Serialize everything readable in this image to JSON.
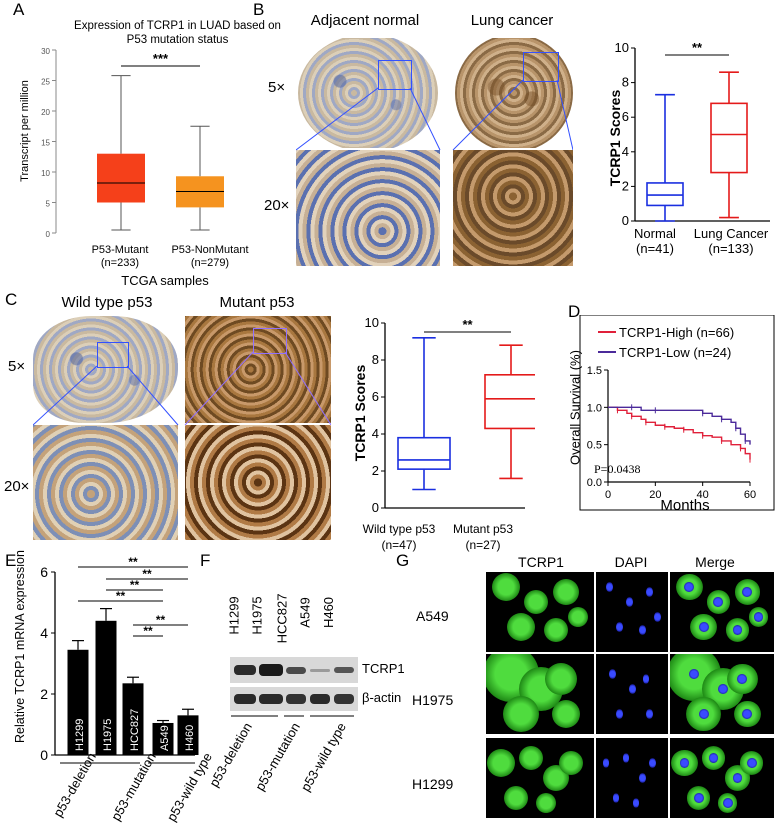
{
  "panels": {
    "A": {
      "label": "A",
      "title_line1": "Expression of TCRP1 in LUAD based on",
      "title_line2": "P53 mutation status",
      "ylabel": "Transcript per million",
      "xlabel": "TCGA samples",
      "groups": [
        {
          "name": "P53-Mutant",
          "n": "(n=233)",
          "color": "#f5401a"
        },
        {
          "name": "P53-NonMutant",
          "n": "(n=279)",
          "color": "#f5931f"
        }
      ],
      "sig": "***"
    },
    "B": {
      "label": "B",
      "col1": "Adjacent normal",
      "col2": "Lung cancer",
      "row1": "5×",
      "row2": "20×",
      "ylabel": "TCRP1 Scores",
      "groups": [
        {
          "name": "Normal",
          "n": "(n=41)",
          "color": "#1a2fe0"
        },
        {
          "name": "Lung Cancer",
          "n": "(n=133)",
          "color": "#e41a1a"
        }
      ],
      "sig": "**"
    },
    "C": {
      "label": "C",
      "col1": "Wild type p53",
      "col2": "Mutant p53",
      "row1": "5×",
      "row2": "20×",
      "ylabel": "TCRP1 Scores",
      "groups": [
        {
          "name": "Wild type p53",
          "n": "(n=47)",
          "color": "#1a2fe0"
        },
        {
          "name": "Mutant p53",
          "n": "(n=27)",
          "color": "#e41a1a"
        }
      ],
      "sig": "**"
    },
    "D": {
      "label": "D",
      "ylabel": "Overall Survival (%)",
      "xlabel": "Months",
      "legend_high": "TCRP1-High (n=66)",
      "legend_low": "TCRP1-Low (n=24)",
      "pvalue": "P=0.0438"
    },
    "E": {
      "label": "E",
      "ylabel": "Relative TCRP1 mRNA expression",
      "groups": [
        "p53-deletion",
        "p53-mutation",
        "p53-wild type"
      ],
      "sig": "**"
    },
    "F": {
      "label": "F",
      "lanes": [
        "H1299",
        "H1975",
        "HCC827",
        "A549",
        "H460"
      ],
      "bands": [
        "TCRP1",
        "β-actin"
      ],
      "groups": [
        "p53-deletion",
        "p53-mutation",
        "p53-wild type"
      ]
    },
    "G": {
      "label": "G",
      "cols": [
        "TCRP1",
        "DAPI",
        "Merge"
      ],
      "rows": [
        "A549",
        "H1975",
        "H1299"
      ]
    }
  },
  "chart_data": [
    {
      "type": "box",
      "panel": "A",
      "title": "Expression of TCRP1 in LUAD based on P53 mutation status",
      "ylabel": "Transcript per million",
      "xlabel": "TCGA samples",
      "ylim": [
        0,
        30
      ],
      "yticks": [
        0,
        5,
        10,
        15,
        20,
        25,
        30
      ],
      "categories": [
        "P53-Mutant",
        "P53-NonMutant"
      ],
      "boxes": [
        {
          "min": 0.5,
          "q1": 5,
          "median": 8.2,
          "q3": 13,
          "max": 25.8
        },
        {
          "min": 0.5,
          "q1": 4.2,
          "median": 6.8,
          "q3": 9.3,
          "max": 17.5
        }
      ]
    },
    {
      "type": "box",
      "panel": "B",
      "ylabel": "TCRP1 Scores",
      "ylim": [
        0,
        10
      ],
      "yticks": [
        0,
        2,
        4,
        6,
        8,
        10
      ],
      "categories": [
        "Normal",
        "Lung Cancer"
      ],
      "boxes": [
        {
          "min": 0,
          "q1": 0.9,
          "median": 1.5,
          "q3": 2.2,
          "max": 7.3
        },
        {
          "min": 0.2,
          "q1": 2.8,
          "median": 5.0,
          "q3": 6.8,
          "max": 8.6
        }
      ]
    },
    {
      "type": "box",
      "panel": "C",
      "ylabel": "TCRP1 Scores",
      "ylim": [
        0,
        10
      ],
      "yticks": [
        0,
        2,
        4,
        6,
        8,
        10
      ],
      "categories": [
        "Wild type p53",
        "Mutant p53"
      ],
      "boxes": [
        {
          "min": 1.0,
          "q1": 2.1,
          "median": 2.6,
          "q3": 3.8,
          "max": 9.2
        },
        {
          "min": 1.6,
          "q1": 4.3,
          "median": 5.9,
          "q3": 7.2,
          "max": 8.8
        }
      ]
    },
    {
      "type": "line",
      "panel": "D",
      "ylabel": "Overall Survival (%)",
      "xlabel": "Months",
      "xlim": [
        0,
        60
      ],
      "ylim": [
        0,
        1.5
      ],
      "xticks": [
        0,
        20,
        40,
        60
      ],
      "yticks": [
        0.0,
        0.5,
        1.0,
        1.5
      ],
      "series": [
        {
          "name": "TCRP1-High (n=66)",
          "color": "#e0203a",
          "x": [
            0,
            4,
            8,
            10,
            14,
            16,
            20,
            24,
            28,
            32,
            36,
            40,
            44,
            48,
            52,
            56,
            58,
            60
          ],
          "y": [
            1.0,
            0.96,
            0.92,
            0.88,
            0.84,
            0.8,
            0.76,
            0.74,
            0.72,
            0.7,
            0.66,
            0.62,
            0.6,
            0.55,
            0.5,
            0.45,
            0.38,
            0.3
          ]
        },
        {
          "name": "TCRP1-Low (n=24)",
          "color": "#4b2a9a",
          "x": [
            0,
            10,
            14,
            20,
            30,
            40,
            44,
            48,
            52,
            54,
            56,
            58,
            60
          ],
          "y": [
            1.0,
            1.0,
            0.96,
            0.96,
            0.96,
            0.92,
            0.88,
            0.84,
            0.8,
            0.72,
            0.64,
            0.55,
            0.5
          ]
        }
      ],
      "annotation": "P=0.0438"
    },
    {
      "type": "bar",
      "panel": "E",
      "ylabel": "Relative TCRP1 mRNA expression",
      "ylim": [
        0,
        6
      ],
      "yticks": [
        0,
        2,
        4,
        6
      ],
      "categories": [
        "H1299",
        "H1975",
        "HCC827",
        "A549",
        "H460"
      ],
      "values": [
        3.45,
        4.4,
        2.35,
        1.05,
        1.3
      ],
      "errors": [
        0.3,
        0.4,
        0.2,
        0.08,
        0.2
      ],
      "groups": [
        "p53-deletion",
        "p53-mutation",
        "p53-wild type"
      ],
      "annotation": "**"
    }
  ]
}
